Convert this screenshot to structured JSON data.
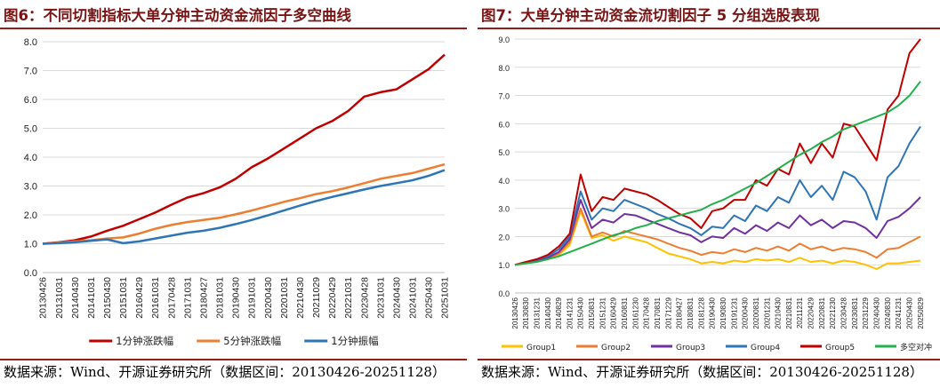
{
  "source_label": "数据来源：Wind、开源证券研究所（数据区间：20130426-20251128）",
  "colors": {
    "title": "#7a1414",
    "rule": "#9a1b1b",
    "red": "#c00000",
    "orange": "#ed7d31",
    "blue": "#2e75b6",
    "yellow": "#ffc000",
    "purple": "#7030a0",
    "green": "#22b04b"
  },
  "left": {
    "title": "图6：不同切割指标大单分钟主动资金流因子多空曲线",
    "source": "数据来源：Wind、开源证券研究所（数据区间：20130426-20251128）",
    "chart_data": {
      "type": "line",
      "x_ticks": [
        "20130426",
        "20131031",
        "20140430",
        "20141031",
        "20150430",
        "20151031",
        "20160429",
        "20161031",
        "20170428",
        "20171031",
        "20180427",
        "20181031",
        "20190430",
        "20191031",
        "20200430",
        "20201031",
        "20210430",
        "20211029",
        "20220429",
        "20221031",
        "20230428",
        "20231031",
        "20240430",
        "20241031",
        "20250430",
        "20251031"
      ],
      "ylim": [
        0,
        8
      ],
      "y_ticks": [
        "0.0",
        "1.0",
        "2.0",
        "3.0",
        "4.0",
        "5.0",
        "6.0",
        "7.0",
        "8.0"
      ],
      "series": [
        {
          "name": "1分钟涨跌幅",
          "color": "#c00000",
          "values": [
            1.0,
            1.05,
            1.12,
            1.25,
            1.45,
            1.62,
            1.85,
            2.08,
            2.35,
            2.6,
            2.75,
            2.95,
            3.25,
            3.65,
            3.95,
            4.3,
            4.65,
            5.0,
            5.25,
            5.6,
            6.1,
            6.25,
            6.35,
            6.7,
            7.05,
            7.55
          ]
        },
        {
          "name": "5分钟涨跌幅",
          "color": "#ed7d31",
          "values": [
            1.0,
            1.04,
            1.08,
            1.12,
            1.18,
            1.22,
            1.35,
            1.52,
            1.65,
            1.75,
            1.82,
            1.9,
            2.02,
            2.15,
            2.3,
            2.45,
            2.58,
            2.72,
            2.82,
            2.95,
            3.1,
            3.25,
            3.35,
            3.45,
            3.6,
            3.75
          ]
        },
        {
          "name": "1分钟振幅",
          "color": "#2e75b6",
          "values": [
            1.0,
            1.02,
            1.05,
            1.1,
            1.15,
            1.02,
            1.08,
            1.18,
            1.28,
            1.38,
            1.45,
            1.55,
            1.68,
            1.82,
            1.98,
            2.15,
            2.32,
            2.48,
            2.62,
            2.75,
            2.88,
            3.0,
            3.1,
            3.2,
            3.35,
            3.55
          ]
        }
      ],
      "legend_position": "bottom"
    }
  },
  "right": {
    "title": "图7：大单分钟主动资金流切割因子 5 分组选股表现",
    "source": "数据来源：Wind、开源证券研究所（数据区间：20130426-20251128）",
    "chart_data": {
      "type": "line",
      "x_ticks": [
        "20130426",
        "20130830",
        "20131231",
        "20140430",
        "20140829",
        "20141231",
        "20150430",
        "20150831",
        "20151231",
        "20160429",
        "20160831",
        "20161230",
        "20170428",
        "20170831",
        "20171229",
        "20180427",
        "20180831",
        "20181228",
        "20190430",
        "20190830",
        "20191231",
        "20200430",
        "20200831",
        "20201231",
        "20210430",
        "20210831",
        "20211231",
        "20220429",
        "20220831",
        "20221230",
        "20230428",
        "20230831",
        "20231229",
        "20240430",
        "20240830",
        "20241231",
        "20250430",
        "20250829"
      ],
      "ylim": [
        0,
        9
      ],
      "y_ticks": [
        "0.0",
        "1.0",
        "2.0",
        "3.0",
        "4.0",
        "5.0",
        "6.0",
        "7.0",
        "8.0",
        "9.0"
      ],
      "series": [
        {
          "name": "Group1",
          "color": "#ffc000",
          "values": [
            1.0,
            1.05,
            1.12,
            1.2,
            1.35,
            1.7,
            2.9,
            1.95,
            2.05,
            1.85,
            2.0,
            1.9,
            1.8,
            1.6,
            1.4,
            1.3,
            1.2,
            1.05,
            1.1,
            1.05,
            1.15,
            1.1,
            1.2,
            1.15,
            1.2,
            1.1,
            1.25,
            1.1,
            1.15,
            1.05,
            1.15,
            1.1,
            1.0,
            0.85,
            1.05,
            1.05,
            1.1,
            1.15
          ]
        },
        {
          "name": "Group2",
          "color": "#ed7d31",
          "values": [
            1.0,
            1.06,
            1.14,
            1.22,
            1.4,
            1.8,
            3.0,
            2.0,
            2.15,
            2.0,
            2.2,
            2.1,
            2.0,
            1.9,
            1.75,
            1.6,
            1.5,
            1.35,
            1.45,
            1.4,
            1.55,
            1.45,
            1.6,
            1.5,
            1.65,
            1.5,
            1.75,
            1.55,
            1.65,
            1.5,
            1.6,
            1.55,
            1.45,
            1.25,
            1.55,
            1.6,
            1.8,
            2.0
          ]
        },
        {
          "name": "Group3",
          "color": "#7030a0",
          "values": [
            1.0,
            1.07,
            1.16,
            1.25,
            1.45,
            1.9,
            3.3,
            2.3,
            2.6,
            2.5,
            2.8,
            2.75,
            2.6,
            2.45,
            2.3,
            2.15,
            2.05,
            1.8,
            2.0,
            1.95,
            2.3,
            2.1,
            2.4,
            2.2,
            2.5,
            2.3,
            2.75,
            2.4,
            2.6,
            2.3,
            2.55,
            2.5,
            2.3,
            1.95,
            2.55,
            2.7,
            3.0,
            3.4
          ]
        },
        {
          "name": "Group4",
          "color": "#2e75b6",
          "values": [
            1.0,
            1.08,
            1.18,
            1.3,
            1.55,
            2.0,
            3.6,
            2.6,
            3.0,
            2.9,
            3.3,
            3.15,
            3.0,
            2.8,
            2.65,
            2.45,
            2.3,
            2.05,
            2.35,
            2.3,
            2.75,
            2.55,
            3.1,
            2.9,
            3.4,
            3.2,
            4.0,
            3.4,
            3.8,
            3.3,
            4.3,
            4.1,
            3.6,
            2.6,
            4.1,
            4.5,
            5.3,
            5.9
          ]
        },
        {
          "name": "Group5",
          "color": "#c00000",
          "values": [
            1.0,
            1.1,
            1.2,
            1.35,
            1.65,
            2.1,
            4.2,
            2.9,
            3.4,
            3.3,
            3.7,
            3.6,
            3.5,
            3.3,
            3.05,
            2.8,
            2.65,
            2.3,
            2.9,
            3.0,
            3.3,
            3.3,
            4.0,
            3.8,
            4.4,
            4.2,
            5.3,
            4.6,
            5.3,
            4.8,
            6.0,
            5.9,
            5.3,
            4.7,
            6.5,
            7.0,
            8.5,
            9.0
          ]
        },
        {
          "name": "多空对冲",
          "color": "#22b04b",
          "values": [
            1.0,
            1.05,
            1.1,
            1.2,
            1.3,
            1.45,
            1.6,
            1.75,
            1.9,
            2.05,
            2.15,
            2.3,
            2.4,
            2.55,
            2.65,
            2.75,
            2.85,
            2.95,
            3.15,
            3.3,
            3.5,
            3.7,
            3.9,
            4.15,
            4.4,
            4.65,
            4.9,
            5.1,
            5.35,
            5.55,
            5.8,
            5.95,
            6.1,
            6.25,
            6.4,
            6.65,
            7.0,
            7.5
          ]
        }
      ],
      "legend_position": "bottom"
    }
  }
}
